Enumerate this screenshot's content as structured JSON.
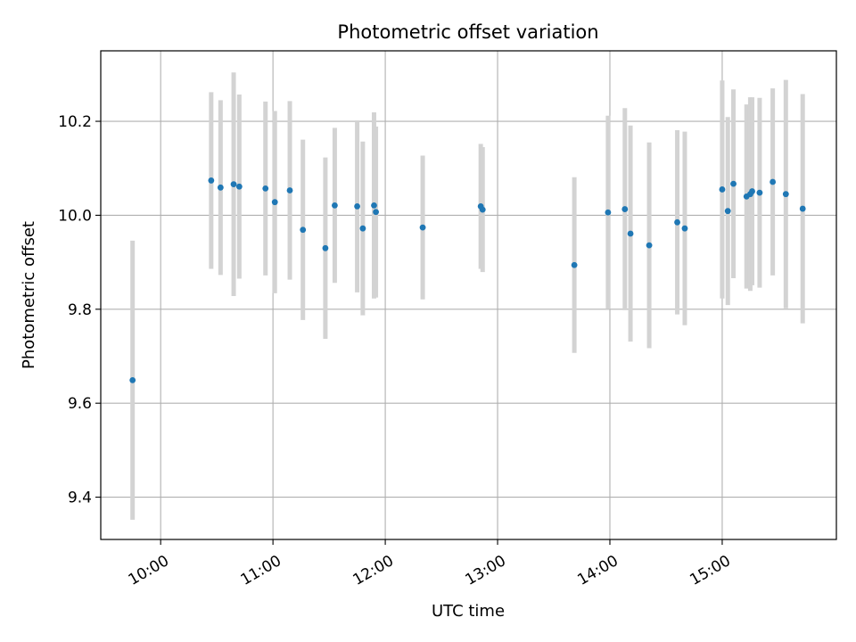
{
  "chart_data": {
    "type": "scatter",
    "title": "Photometric offset variation",
    "xlabel": "UTC time",
    "ylabel": "Photometric offset",
    "xlim": [
      "09:28",
      "16:01"
    ],
    "ylim": [
      9.31,
      10.35
    ],
    "xticks": [
      "10:00",
      "11:00",
      "12:00",
      "13:00",
      "14:00",
      "15:00"
    ],
    "yticks": [
      9.4,
      9.6,
      9.8,
      10.0,
      10.2
    ],
    "ytick_labels": [
      "9.4",
      "9.6",
      "9.8",
      "10.0",
      "10.2"
    ],
    "grid": true,
    "colors": {
      "points": "#1f77b4",
      "errorbars": "#d3d3d3",
      "grid": "#b0b0b0",
      "axes": "#000000"
    },
    "series": [
      {
        "points": [
          {
            "x": "09:45",
            "y": 9.649,
            "yerr": 0.297
          },
          {
            "x": "10:27",
            "y": 10.074,
            "yerr": 0.188
          },
          {
            "x": "10:32",
            "y": 10.059,
            "yerr": 0.186
          },
          {
            "x": "10:39",
            "y": 10.066,
            "yerr": 0.238
          },
          {
            "x": "10:42",
            "y": 10.061,
            "yerr": 0.196
          },
          {
            "x": "10:56",
            "y": 10.057,
            "yerr": 0.185
          },
          {
            "x": "11:01",
            "y": 10.028,
            "yerr": 0.194
          },
          {
            "x": "11:09",
            "y": 10.053,
            "yerr": 0.19
          },
          {
            "x": "11:16",
            "y": 9.969,
            "yerr": 0.192
          },
          {
            "x": "11:28",
            "y": 9.93,
            "yerr": 0.193
          },
          {
            "x": "11:33",
            "y": 10.021,
            "yerr": 0.165
          },
          {
            "x": "11:45",
            "y": 10.019,
            "yerr": 0.183
          },
          {
            "x": "11:48",
            "y": 9.972,
            "yerr": 0.185
          },
          {
            "x": "11:54",
            "y": 10.021,
            "yerr": 0.198
          },
          {
            "x": "11:55",
            "y": 10.007,
            "yerr": 0.182
          },
          {
            "x": "12:20",
            "y": 9.974,
            "yerr": 0.153
          },
          {
            "x": "12:51",
            "y": 10.019,
            "yerr": 0.133
          },
          {
            "x": "12:52",
            "y": 10.012,
            "yerr": 0.133
          },
          {
            "x": "13:41",
            "y": 9.894,
            "yerr": 0.187
          },
          {
            "x": "13:59",
            "y": 10.006,
            "yerr": 0.206
          },
          {
            "x": "14:08",
            "y": 10.013,
            "yerr": 0.215
          },
          {
            "x": "14:11",
            "y": 9.961,
            "yerr": 0.23
          },
          {
            "x": "14:21",
            "y": 9.936,
            "yerr": 0.219
          },
          {
            "x": "14:36",
            "y": 9.985,
            "yerr": 0.196
          },
          {
            "x": "14:40",
            "y": 9.972,
            "yerr": 0.206
          },
          {
            "x": "15:00",
            "y": 10.055,
            "yerr": 0.232
          },
          {
            "x": "15:03",
            "y": 10.009,
            "yerr": 0.2
          },
          {
            "x": "15:06",
            "y": 10.067,
            "yerr": 0.201
          },
          {
            "x": "15:13",
            "y": 10.04,
            "yerr": 0.196
          },
          {
            "x": "15:15",
            "y": 10.045,
            "yerr": 0.206
          },
          {
            "x": "15:16",
            "y": 10.051,
            "yerr": 0.2
          },
          {
            "x": "15:20",
            "y": 10.048,
            "yerr": 0.202
          },
          {
            "x": "15:27",
            "y": 10.071,
            "yerr": 0.199
          },
          {
            "x": "15:34",
            "y": 10.045,
            "yerr": 0.243
          },
          {
            "x": "15:43",
            "y": 10.014,
            "yerr": 0.244
          }
        ]
      }
    ]
  }
}
